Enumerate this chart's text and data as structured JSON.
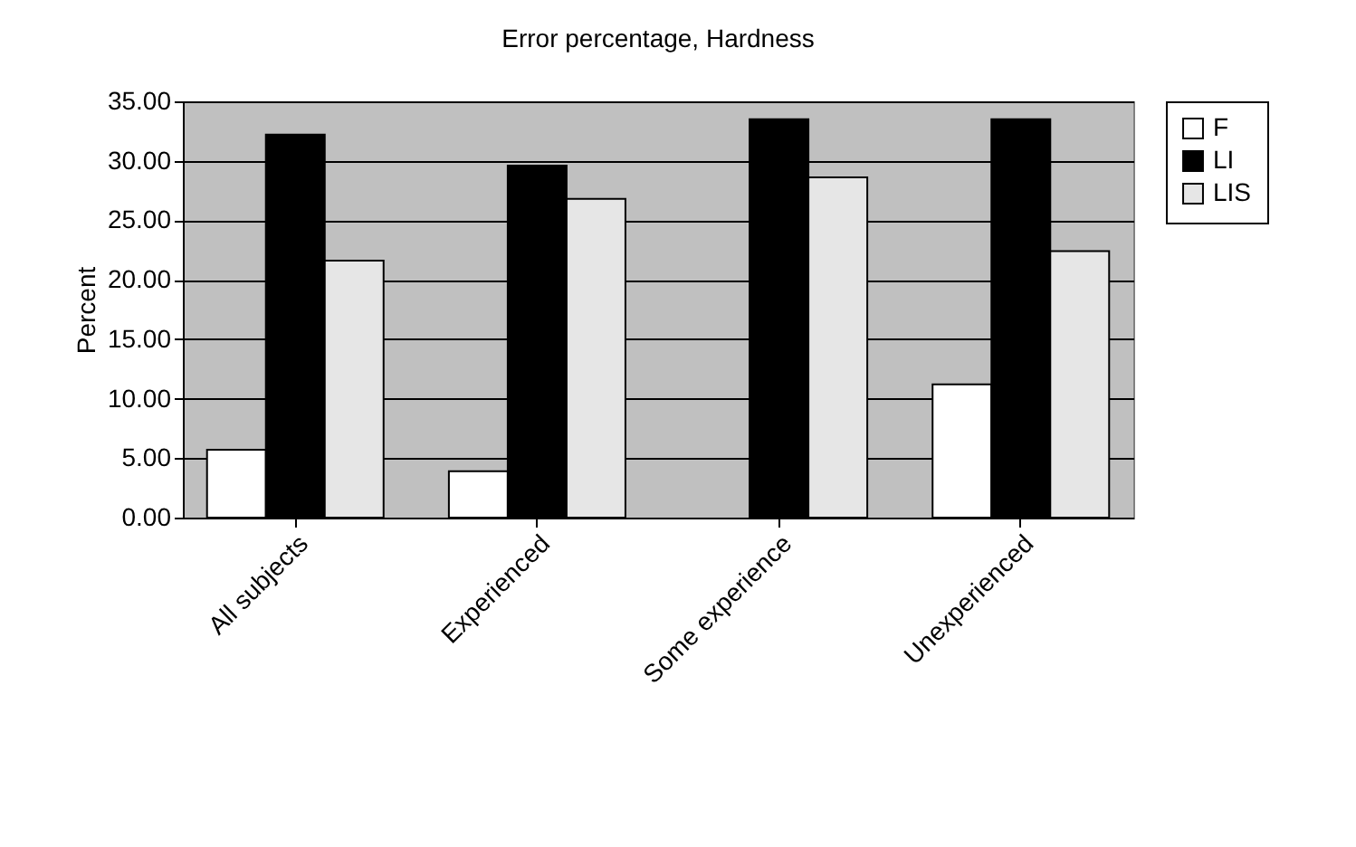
{
  "chart_data": {
    "type": "bar",
    "title": "Error percentage, Hardness",
    "ylabel": "Percent",
    "categories": [
      "All subjects",
      "Experienced",
      "Some experience",
      "Unexperienced"
    ],
    "series": [
      {
        "name": "F",
        "color": "#ffffff",
        "values": [
          5.7,
          3.9,
          null,
          11.2
        ]
      },
      {
        "name": "LI",
        "color": "#000000",
        "values": [
          32.2,
          29.6,
          33.5,
          33.5
        ]
      },
      {
        "name": "LIS",
        "color": "#e6e6e6",
        "values": [
          21.6,
          26.8,
          28.6,
          22.4
        ]
      }
    ],
    "ylim": [
      0,
      35
    ],
    "yticks": [
      {
        "value": 0,
        "label": "0.00"
      },
      {
        "value": 5,
        "label": "5.00"
      },
      {
        "value": 10,
        "label": "10.00"
      },
      {
        "value": 15,
        "label": "15.00"
      },
      {
        "value": 20,
        "label": "20.00"
      },
      {
        "value": 25,
        "label": "25.00"
      },
      {
        "value": 30,
        "label": "30.00"
      },
      {
        "value": 35,
        "label": "35.00"
      }
    ],
    "grid": "y",
    "legend": "right"
  }
}
